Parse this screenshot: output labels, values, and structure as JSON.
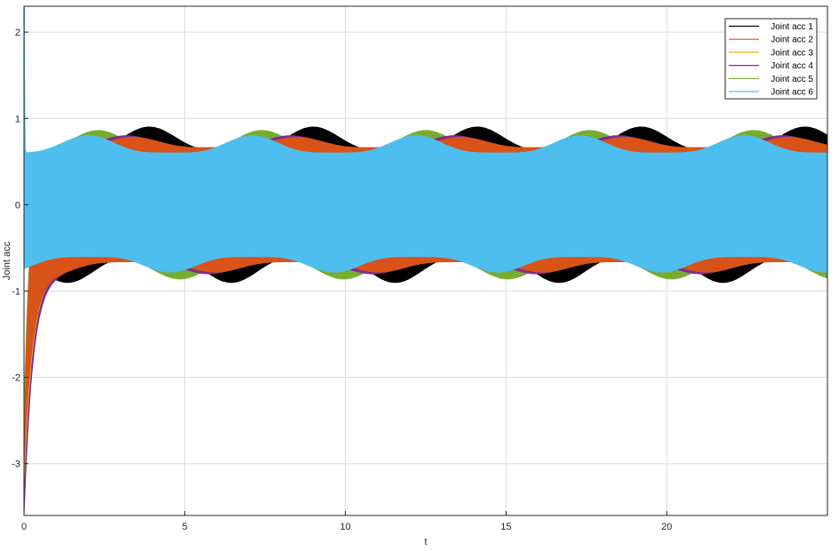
{
  "chart_data": {
    "type": "line",
    "title": "",
    "xlabel": "t",
    "ylabel": "Joint acc",
    "xlim": [
      0,
      25
    ],
    "ylim": [
      -3.6,
      2.3
    ],
    "xticks": [
      0,
      5,
      10,
      15,
      20
    ],
    "xtick_labels": [
      "0",
      "5",
      "10",
      "15",
      "20"
    ],
    "yticks": [
      -3,
      -2,
      -1,
      0,
      1,
      2
    ],
    "ytick_labels": [
      "-3",
      "-2",
      "-1",
      "0",
      "1",
      "2"
    ],
    "grid": true,
    "legend_position": "top-right",
    "t_start": 0,
    "t_end": 25,
    "series": [
      {
        "name": "Joint acc 1",
        "color": "#000000",
        "start_value": 0.0,
        "envelope_upper": [
          0.65,
          0.9,
          0.6
        ],
        "envelope_lower": [
          -0.6,
          -0.9,
          -0.6
        ],
        "period": 5.1,
        "peak_time": 3.9
      },
      {
        "name": "Joint acc 2",
        "color": "#D95319",
        "start_value": -3.0,
        "envelope_upper": [
          0.7,
          0.78,
          0.62
        ],
        "envelope_lower": [
          -0.62,
          -0.78,
          -0.7
        ],
        "period": 5.1,
        "peak_time": 3.4
      },
      {
        "name": "Joint acc 3",
        "color": "#EDB120",
        "start_value": -3.2,
        "envelope_upper": [
          0.7,
          0.76,
          0.62
        ],
        "envelope_lower": [
          -0.62,
          -0.76,
          -0.7
        ],
        "period": 5.1,
        "peak_time": 3.3
      },
      {
        "name": "Joint acc 4",
        "color": "#7E2F8E",
        "start_value": -3.6,
        "envelope_upper": [
          0.7,
          0.8,
          0.62
        ],
        "envelope_lower": [
          -0.62,
          -0.8,
          -0.7
        ],
        "period": 5.1,
        "peak_time": 3.2
      },
      {
        "name": "Joint acc 5",
        "color": "#77AC30",
        "start_value": -2.5,
        "envelope_upper": [
          0.62,
          0.86,
          0.62
        ],
        "envelope_lower": [
          -0.62,
          -0.86,
          -0.62
        ],
        "period": 5.1,
        "peak_time": 2.3
      },
      {
        "name": "Joint acc 6",
        "color": "#4DBEEE",
        "start_value": 2.3,
        "envelope_upper": [
          0.6,
          0.8,
          0.6
        ],
        "envelope_lower": [
          -0.6,
          -0.78,
          -0.6
        ],
        "period": 5.1,
        "peak_time": 2.0
      }
    ]
  }
}
